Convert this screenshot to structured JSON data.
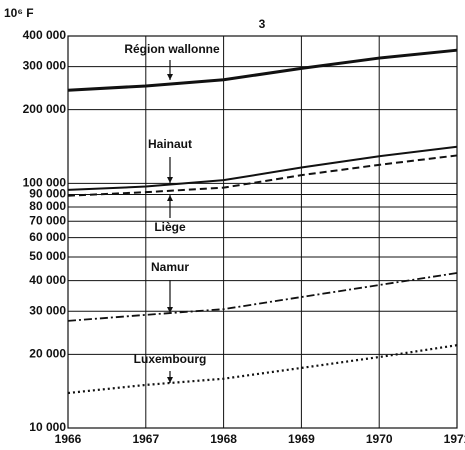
{
  "chart_data": {
    "type": "line",
    "title": "3",
    "y_unit": "10⁶ F",
    "yscale": "log",
    "grid": true,
    "x": [
      1966,
      1967,
      1968,
      1969,
      1970,
      1971
    ],
    "xlim": [
      1966,
      1971
    ],
    "xticks": [
      1966,
      1967,
      1968,
      1969,
      1970,
      1971
    ],
    "ylim": [
      10000,
      400000
    ],
    "yticks": [
      {
        "value": 10000,
        "label": "10 000"
      },
      {
        "value": 20000,
        "label": "20 000"
      },
      {
        "value": 30000,
        "label": "30 000"
      },
      {
        "value": 40000,
        "label": "40 000"
      },
      {
        "value": 50000,
        "label": "50 000"
      },
      {
        "value": 60000,
        "label": "60 000"
      },
      {
        "value": 70000,
        "label": "70 000"
      },
      {
        "value": 80000,
        "label": "80 000"
      },
      {
        "value": 90000,
        "label": "90 000"
      },
      {
        "value": 100000,
        "label": "100 000"
      },
      {
        "value": 200000,
        "label": "200 000"
      },
      {
        "value": 300000,
        "label": "300 000"
      },
      {
        "value": 400000,
        "label": "400 000"
      }
    ],
    "series": [
      {
        "name": "Région wallonne",
        "color": "#111111",
        "style": "solid-thick",
        "values": [
          240000,
          250000,
          265000,
          295000,
          325000,
          350000
        ]
      },
      {
        "name": "Hainaut",
        "color": "#111111",
        "style": "solid",
        "values": [
          94000,
          97000,
          103000,
          116000,
          129000,
          141000
        ]
      },
      {
        "name": "Liège",
        "color": "#111111",
        "style": "dashed",
        "values": [
          89000,
          92000,
          96000,
          108000,
          119000,
          130000
        ]
      },
      {
        "name": "Namur",
        "color": "#111111",
        "style": "dashdot",
        "values": [
          27400,
          29000,
          30600,
          34300,
          38400,
          43000
        ]
      },
      {
        "name": "Luxembourg",
        "color": "#111111",
        "style": "dotted",
        "values": [
          13900,
          15000,
          15900,
          17600,
          19500,
          21800
        ]
      }
    ]
  }
}
